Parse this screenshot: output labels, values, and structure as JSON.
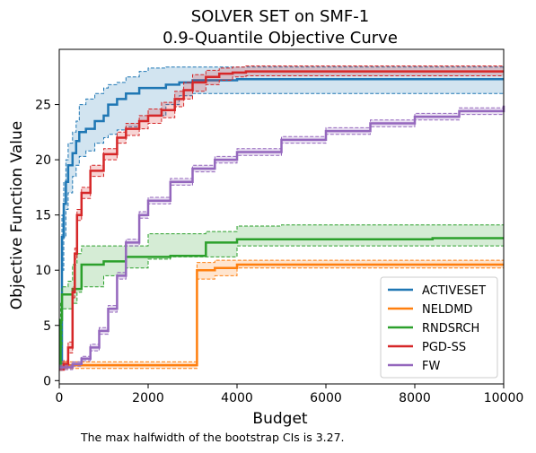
{
  "chart_data": {
    "type": "line",
    "title": "SOLVER SET on SMF-1",
    "subtitle": "0.9-Quantile Objective Curve",
    "xlabel": "Budget",
    "ylabel": "Objective Function Value",
    "xlim": [
      0,
      10000
    ],
    "ylim": [
      -0.3,
      30
    ],
    "xticks": [
      0,
      2000,
      4000,
      6000,
      8000,
      10000
    ],
    "xtick_labels": [
      "0",
      "2000",
      "4000",
      "6000",
      "8000",
      "10000"
    ],
    "yticks": [
      0,
      5,
      10,
      15,
      20,
      25
    ],
    "ytick_labels": [
      "0",
      "5",
      "10",
      "15",
      "20",
      "25"
    ],
    "grid": false,
    "legend_position": "lower-right",
    "series": [
      {
        "name": "ACTIVESET",
        "color": "#1f77b4",
        "x": [
          0,
          60,
          100,
          150,
          200,
          300,
          380,
          450,
          600,
          800,
          1000,
          1100,
          1300,
          1500,
          1800,
          2000,
          2400,
          2700,
          3000,
          3500,
          4000,
          5000,
          6000,
          8000,
          10000
        ],
        "y": [
          1,
          13,
          16,
          18,
          19.5,
          20.6,
          21.7,
          22.5,
          22.8,
          23.5,
          24,
          25,
          25.5,
          26,
          26.5,
          26.5,
          26.8,
          27,
          27.2,
          27.2,
          27.3,
          27.3,
          27.3,
          27.3,
          27.3
        ],
        "lower": [
          1,
          10,
          13,
          15.5,
          17,
          18.5,
          19.5,
          20.3,
          20.8,
          21.5,
          22,
          22.3,
          22.7,
          23,
          23.5,
          24,
          25,
          25.8,
          26,
          26,
          26,
          26,
          26,
          26,
          26
        ],
        "upper": [
          1,
          15,
          18,
          20,
          21.5,
          22.5,
          23.5,
          25,
          25.5,
          26,
          26.5,
          26.8,
          27,
          27.5,
          28,
          28.3,
          28.4,
          28.4,
          28.4,
          28.4,
          28.4,
          28.4,
          28.4,
          28.4,
          28.4
        ]
      },
      {
        "name": "NELDMD",
        "color": "#ff7f0e",
        "x": [
          0,
          500,
          1000,
          1500,
          2000,
          2500,
          3080,
          3100,
          3500,
          4000,
          5000,
          6000,
          8000,
          10000
        ],
        "y": [
          1.4,
          1.4,
          1.4,
          1.4,
          1.4,
          1.4,
          1.4,
          10,
          10.2,
          10.5,
          10.5,
          10.5,
          10.5,
          10.5
        ],
        "lower": [
          1.1,
          1.1,
          1.1,
          1.1,
          1.1,
          1.1,
          1.1,
          9.2,
          9.5,
          10.2,
          10.2,
          10.2,
          10.2,
          10.2
        ],
        "upper": [
          1.7,
          1.7,
          1.7,
          1.7,
          1.7,
          1.7,
          1.7,
          10.7,
          10.9,
          10.9,
          10.9,
          10.9,
          10.9,
          10.9
        ]
      },
      {
        "name": "RNDSRCH",
        "color": "#2ca02c",
        "x": [
          0,
          30,
          60,
          100,
          200,
          300,
          400,
          500,
          1000,
          1500,
          2000,
          2500,
          3300,
          4000,
          5000,
          6000,
          8000,
          8400,
          10000
        ],
        "y": [
          1,
          5.5,
          7.8,
          7.8,
          7.8,
          8.3,
          8.3,
          10.5,
          10.8,
          11.2,
          11.2,
          11.3,
          12.5,
          12.8,
          12.8,
          12.8,
          12.8,
          12.9,
          12.9
        ],
        "lower": [
          1,
          3,
          6.5,
          6.5,
          6.5,
          7,
          8,
          8.5,
          9.5,
          10.2,
          11,
          11.2,
          11.2,
          12.2,
          12.2,
          12.2,
          12.2,
          12.2,
          12.2
        ],
        "upper": [
          1,
          7,
          8.5,
          8.5,
          9,
          10.5,
          11.5,
          12.2,
          12.2,
          12.2,
          13.3,
          13.3,
          13.5,
          14,
          14.1,
          14.1,
          14.1,
          14.1,
          14.1
        ]
      },
      {
        "name": "PGD-SS",
        "color": "#d62728",
        "x": [
          0,
          100,
          200,
          300,
          350,
          400,
          500,
          700,
          1000,
          1300,
          1500,
          1800,
          2000,
          2300,
          2600,
          2800,
          3000,
          3300,
          3600,
          3900,
          4200,
          5000,
          6000,
          8000,
          10000
        ],
        "y": [
          1,
          1.5,
          3,
          8,
          11.5,
          15,
          17,
          19,
          20.5,
          22,
          22.8,
          23.5,
          24,
          24.5,
          25.5,
          26.3,
          27,
          27.5,
          27.8,
          27.9,
          28,
          28,
          28,
          28,
          28
        ],
        "lower": [
          1,
          1.2,
          2.5,
          7.5,
          11,
          14.5,
          16.5,
          18.5,
          20,
          21.5,
          22.2,
          22.8,
          23.3,
          23.8,
          24.8,
          25.5,
          26.2,
          26.8,
          27.2,
          27.5,
          27.6,
          27.6,
          27.6,
          27.6,
          27.6
        ],
        "upper": [
          1,
          1.8,
          3.5,
          8.5,
          12,
          15.5,
          17.5,
          19.5,
          21,
          22.5,
          23.3,
          24,
          24.6,
          25.2,
          26.2,
          27,
          27.7,
          28.1,
          28.3,
          28.4,
          28.5,
          28.5,
          28.5,
          28.5,
          28.5
        ]
      },
      {
        "name": "FW",
        "color": "#9467bd",
        "x": [
          0,
          300,
          500,
          700,
          900,
          1100,
          1300,
          1500,
          1800,
          2000,
          2500,
          3000,
          3500,
          4000,
          5000,
          6000,
          7000,
          8000,
          9000,
          10000
        ],
        "y": [
          1.2,
          1.5,
          2,
          3,
          4.5,
          6.5,
          9.5,
          12.5,
          15,
          16.3,
          18,
          19.2,
          20,
          20.7,
          21.8,
          22.6,
          23.3,
          23.9,
          24.4,
          24.9
        ],
        "lower": [
          1.0,
          1.3,
          1.8,
          2.7,
          4.2,
          6.2,
          9.2,
          12.2,
          14.7,
          16.0,
          17.7,
          18.9,
          19.7,
          20.4,
          21.5,
          22.3,
          23.0,
          23.6,
          24.1,
          24.6
        ],
        "upper": [
          1.4,
          1.7,
          2.2,
          3.3,
          4.8,
          6.8,
          9.8,
          12.8,
          15.3,
          16.6,
          18.3,
          19.5,
          20.3,
          21.0,
          22.1,
          22.9,
          23.6,
          24.2,
          24.7,
          25.2
        ]
      }
    ]
  },
  "footnote": "The max halfwidth of the bootstrap CIs is 3.27."
}
